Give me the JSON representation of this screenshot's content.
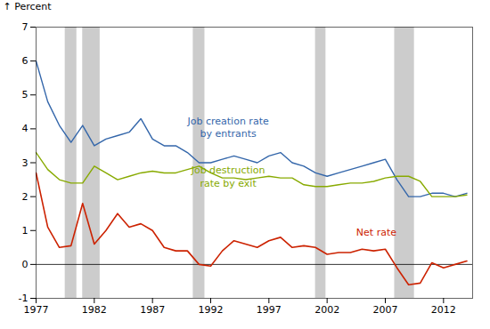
{
  "chart_data": {
    "type": "line",
    "y_label": "Percent",
    "x": [
      1977,
      1978,
      1979,
      1980,
      1981,
      1982,
      1983,
      1984,
      1985,
      1986,
      1987,
      1988,
      1989,
      1990,
      1991,
      1992,
      1993,
      1994,
      1995,
      1996,
      1997,
      1998,
      1999,
      2000,
      2001,
      2002,
      2003,
      2004,
      2005,
      2006,
      2007,
      2008,
      2009,
      2010,
      2011,
      2012,
      2013,
      2014
    ],
    "series": [
      {
        "name": "Job creation rate\nby entrants",
        "color": "#3366aa",
        "values": [
          6.0,
          4.8,
          4.1,
          3.6,
          4.1,
          3.5,
          3.7,
          3.8,
          3.9,
          4.3,
          3.7,
          3.5,
          3.5,
          3.3,
          3.0,
          3.0,
          3.1,
          3.2,
          3.1,
          3.0,
          3.2,
          3.3,
          3.0,
          2.9,
          2.7,
          2.6,
          2.7,
          2.8,
          2.9,
          3.0,
          3.1,
          2.5,
          2.0,
          2.0,
          2.1,
          2.1,
          2.0,
          2.1
        ]
      },
      {
        "name": "Job destruction\nrate by exit",
        "color": "#88aa00",
        "values": [
          3.3,
          2.8,
          2.5,
          2.4,
          2.4,
          2.9,
          2.7,
          2.5,
          2.6,
          2.7,
          2.75,
          2.7,
          2.7,
          2.8,
          2.9,
          2.7,
          2.55,
          2.55,
          2.5,
          2.55,
          2.6,
          2.55,
          2.55,
          2.35,
          2.3,
          2.3,
          2.35,
          2.4,
          2.4,
          2.45,
          2.55,
          2.6,
          2.6,
          2.45,
          2.0,
          2.0,
          2.0,
          2.05
        ]
      },
      {
        "name": "Net rate",
        "color": "#cc2200",
        "values": [
          2.7,
          1.1,
          0.5,
          0.55,
          1.8,
          0.6,
          1.0,
          1.5,
          1.1,
          1.2,
          1.0,
          0.5,
          0.4,
          0.4,
          0.0,
          -0.05,
          0.4,
          0.7,
          0.6,
          0.5,
          0.7,
          0.8,
          0.5,
          0.55,
          0.5,
          0.3,
          0.35,
          0.35,
          0.45,
          0.4,
          0.45,
          -0.1,
          -0.6,
          -0.55,
          0.05,
          -0.1,
          0.0,
          0.1
        ]
      }
    ],
    "annotations": [
      {
        "text": "Job creation rate\nby entrants",
        "x": 1993.5,
        "y": 3.75,
        "color": "#3366aa"
      },
      {
        "text": "Job destruction\nrate by exit",
        "x": 1993.5,
        "y": 2.3,
        "color": "#88aa00"
      },
      {
        "text": "Net rate",
        "x": 2004.5,
        "y": 0.85,
        "color": "#cc2200"
      }
    ],
    "bands": [
      {
        "x1": 1979.5,
        "x2": 1980.5
      },
      {
        "x1": 1981.0,
        "x2": 1982.5
      },
      {
        "x1": 1990.5,
        "x2": 1991.5
      },
      {
        "x1": 2001.0,
        "x2": 2001.9
      },
      {
        "x1": 2007.8,
        "x2": 2009.5
      }
    ],
    "band_color": "#cccccc",
    "reference_lines": [
      {
        "y": 0
      }
    ],
    "xlim": [
      1977,
      2014.5
    ],
    "xticks": [
      1977,
      1982,
      1987,
      1992,
      1997,
      2002,
      2007,
      2012
    ],
    "ylim": [
      -1.0,
      7.0
    ],
    "yticks": [
      -1,
      0,
      1,
      2,
      3,
      4,
      5,
      6,
      7
    ],
    "grid": false
  }
}
